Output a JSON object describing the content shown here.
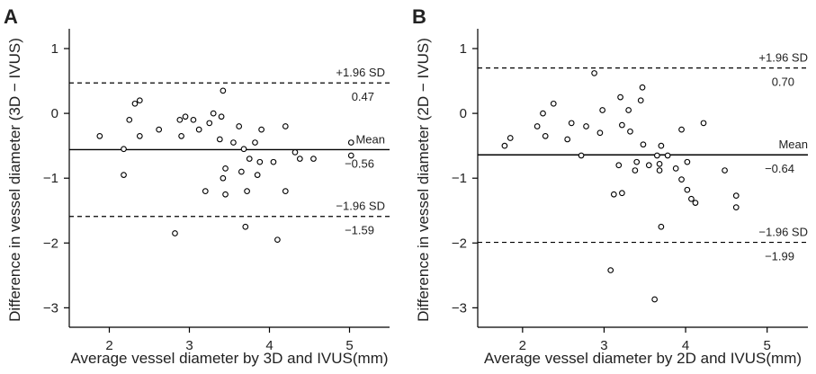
{
  "chart_data": [
    {
      "type": "scatter",
      "panel_label": "A",
      "xlabel": "Average vessel diameter by 3D and IVUS(mm)",
      "ylabel": "Difference in vessel diameter (3D − IVUS)",
      "xlim": [
        1.5,
        5.5
      ],
      "ylim": [
        -3.3,
        1.25
      ],
      "xticks": [
        2,
        3,
        4,
        5
      ],
      "yticks": [
        1,
        0,
        -1,
        -2,
        -3
      ],
      "grid": false,
      "lines": {
        "upper": {
          "label": "+1.96 SD",
          "value": 0.47,
          "value_label": "0.47"
        },
        "mean": {
          "label": "Mean",
          "value": -0.56,
          "value_label": "−0.56"
        },
        "lower": {
          "label": "−1.96 SD",
          "value": -1.59,
          "value_label": "−1.59"
        }
      },
      "points": [
        {
          "x": 1.88,
          "y": -0.35
        },
        {
          "x": 2.18,
          "y": -0.55
        },
        {
          "x": 2.18,
          "y": -0.95
        },
        {
          "x": 2.25,
          "y": -0.1
        },
        {
          "x": 2.32,
          "y": 0.15
        },
        {
          "x": 2.38,
          "y": 0.2
        },
        {
          "x": 2.38,
          "y": -0.35
        },
        {
          "x": 2.62,
          "y": -0.25
        },
        {
          "x": 2.82,
          "y": -1.85
        },
        {
          "x": 2.88,
          "y": -0.1
        },
        {
          "x": 2.9,
          "y": -0.35
        },
        {
          "x": 2.95,
          "y": -0.05
        },
        {
          "x": 3.05,
          "y": -0.1
        },
        {
          "x": 3.12,
          "y": -0.25
        },
        {
          "x": 3.2,
          "y": -1.2
        },
        {
          "x": 3.25,
          "y": -0.15
        },
        {
          "x": 3.3,
          "y": 0.0
        },
        {
          "x": 3.38,
          "y": -0.4
        },
        {
          "x": 3.4,
          "y": -0.05
        },
        {
          "x": 3.42,
          "y": 0.35
        },
        {
          "x": 3.42,
          "y": -1.0
        },
        {
          "x": 3.45,
          "y": -0.85
        },
        {
          "x": 3.45,
          "y": -1.25
        },
        {
          "x": 3.55,
          "y": -0.45
        },
        {
          "x": 3.62,
          "y": -0.2
        },
        {
          "x": 3.65,
          "y": -0.9
        },
        {
          "x": 3.68,
          "y": -0.55
        },
        {
          "x": 3.7,
          "y": -1.75
        },
        {
          "x": 3.72,
          "y": -1.2
        },
        {
          "x": 3.75,
          "y": -0.7
        },
        {
          "x": 3.82,
          "y": -0.45
        },
        {
          "x": 3.85,
          "y": -0.95
        },
        {
          "x": 3.88,
          "y": -0.75
        },
        {
          "x": 3.9,
          "y": -0.25
        },
        {
          "x": 4.05,
          "y": -0.75
        },
        {
          "x": 4.1,
          "y": -1.95
        },
        {
          "x": 4.2,
          "y": -0.2
        },
        {
          "x": 4.2,
          "y": -1.2
        },
        {
          "x": 4.32,
          "y": -0.6
        },
        {
          "x": 4.38,
          "y": -0.7
        },
        {
          "x": 4.55,
          "y": -0.7
        },
        {
          "x": 5.02,
          "y": -0.45
        },
        {
          "x": 5.02,
          "y": -0.65
        }
      ]
    },
    {
      "type": "scatter",
      "panel_label": "B",
      "xlabel": "Average vessel diameter by 2D and IVUS(mm)",
      "ylabel": "Difference in vessel diameter (2D − IVUS)",
      "xlim": [
        1.45,
        5.5
      ],
      "ylim": [
        -3.3,
        1.25
      ],
      "xticks": [
        2,
        3,
        4,
        5
      ],
      "yticks": [
        1,
        0,
        -1,
        -2,
        -3
      ],
      "grid": false,
      "lines": {
        "upper": {
          "label": "+1.96 SD",
          "value": 0.7,
          "value_label": "0.70"
        },
        "mean": {
          "label": "Mean",
          "value": -0.64,
          "value_label": "−0.64"
        },
        "lower": {
          "label": "−1.96 SD",
          "value": -1.99,
          "value_label": "−1.99"
        }
      },
      "points": [
        {
          "x": 1.78,
          "y": -0.5
        },
        {
          "x": 1.85,
          "y": -0.38
        },
        {
          "x": 2.18,
          "y": -0.2
        },
        {
          "x": 2.25,
          "y": 0.0
        },
        {
          "x": 2.28,
          "y": -0.35
        },
        {
          "x": 2.38,
          "y": 0.15
        },
        {
          "x": 2.55,
          "y": -0.4
        },
        {
          "x": 2.6,
          "y": -0.15
        },
        {
          "x": 2.72,
          "y": -0.65
        },
        {
          "x": 2.78,
          "y": -0.2
        },
        {
          "x": 2.88,
          "y": 0.62
        },
        {
          "x": 2.95,
          "y": -0.3
        },
        {
          "x": 2.98,
          "y": 0.05
        },
        {
          "x": 3.08,
          "y": -2.42
        },
        {
          "x": 3.12,
          "y": -1.25
        },
        {
          "x": 3.18,
          "y": -0.8
        },
        {
          "x": 3.2,
          "y": 0.25
        },
        {
          "x": 3.22,
          "y": -1.23
        },
        {
          "x": 3.22,
          "y": -0.18
        },
        {
          "x": 3.3,
          "y": 0.05
        },
        {
          "x": 3.32,
          "y": -0.28
        },
        {
          "x": 3.38,
          "y": -0.88
        },
        {
          "x": 3.4,
          "y": -0.75
        },
        {
          "x": 3.45,
          "y": 0.2
        },
        {
          "x": 3.47,
          "y": 0.4
        },
        {
          "x": 3.48,
          "y": -0.48
        },
        {
          "x": 3.55,
          "y": -0.8
        },
        {
          "x": 3.62,
          "y": -2.87
        },
        {
          "x": 3.65,
          "y": -0.65
        },
        {
          "x": 3.68,
          "y": -0.78
        },
        {
          "x": 3.68,
          "y": -0.88
        },
        {
          "x": 3.7,
          "y": -0.5
        },
        {
          "x": 3.7,
          "y": -1.75
        },
        {
          "x": 3.78,
          "y": -0.65
        },
        {
          "x": 3.88,
          "y": -0.85
        },
        {
          "x": 3.95,
          "y": -0.25
        },
        {
          "x": 3.95,
          "y": -1.02
        },
        {
          "x": 4.02,
          "y": -0.75
        },
        {
          "x": 4.02,
          "y": -1.18
        },
        {
          "x": 4.07,
          "y": -1.32
        },
        {
          "x": 4.12,
          "y": -1.38
        },
        {
          "x": 4.22,
          "y": -0.15
        },
        {
          "x": 4.48,
          "y": -0.88
        },
        {
          "x": 4.62,
          "y": -1.27
        },
        {
          "x": 4.62,
          "y": -1.45
        }
      ]
    }
  ]
}
